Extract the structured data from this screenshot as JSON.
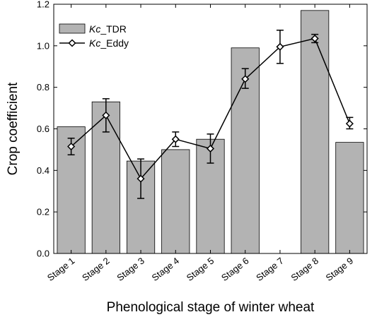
{
  "chart_data": {
    "type": "bar",
    "title": "",
    "xlabel": "Phenological stage of winter wheat",
    "ylabel": "Crop coefficient",
    "ylim": [
      0.0,
      1.2
    ],
    "yticks": [
      "0.0",
      "0.2",
      "0.4",
      "0.6",
      "0.8",
      "1.0",
      "1.2"
    ],
    "categories": [
      "Stage 1",
      "Stage 2",
      "Stage 3",
      "Stage 4",
      "Stage 5",
      "Stage 6",
      "Stage 7",
      "Stage 8",
      "Stage 9"
    ],
    "legend_position": "top-left",
    "series": [
      {
        "name_prefix": "Kc",
        "name_suffix": "_TDR",
        "kind": "bar",
        "color": "#b3b3b3",
        "values": [
          0.61,
          0.73,
          0.445,
          0.5,
          0.55,
          0.99,
          null,
          1.17,
          0.535
        ]
      },
      {
        "name_prefix": "Kc",
        "name_suffix": "_Eddy",
        "kind": "line",
        "marker": "diamond",
        "color": "#000000",
        "values": [
          0.515,
          0.665,
          0.36,
          0.55,
          0.505,
          0.84,
          0.995,
          1.035,
          0.625
        ],
        "err_low": [
          0.475,
          0.585,
          0.265,
          0.515,
          0.435,
          0.795,
          0.915,
          1.015,
          0.6
        ],
        "err_high": [
          0.555,
          0.745,
          0.455,
          0.585,
          0.575,
          0.89,
          1.075,
          1.055,
          0.655
        ]
      }
    ]
  }
}
